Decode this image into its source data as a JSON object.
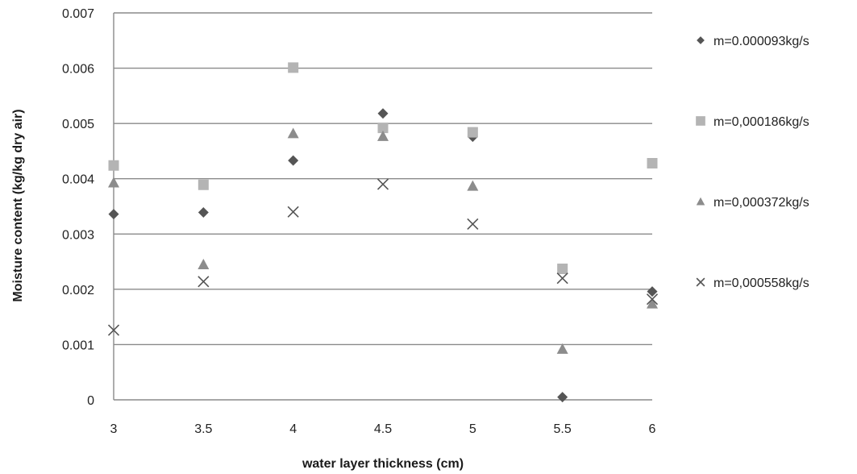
{
  "chart_data": {
    "type": "scatter",
    "xlabel": "water layer thickness (cm)",
    "ylabel": "Moisture content (kg/kg dry air)",
    "xlim": [
      3,
      6
    ],
    "ylim": [
      0,
      0.007
    ],
    "xticks": [
      3,
      3.5,
      4,
      4.5,
      5,
      5.5,
      6
    ],
    "xtick_labels": [
      "3",
      "3.5",
      "4",
      "4.5",
      "5",
      "5.5",
      "6"
    ],
    "yticks": [
      0,
      0.001,
      0.002,
      0.003,
      0.004,
      0.005,
      0.006,
      0.007
    ],
    "ytick_labels": [
      "0",
      "0.001",
      "0.002",
      "0.003",
      "0.004",
      "0.005",
      "0.006",
      "0.007"
    ],
    "grid": "horizontal",
    "legend_position": "right",
    "series": [
      {
        "name": "m=0.000093kg/s",
        "marker": "diamond",
        "color": "#555555",
        "x": [
          3,
          3.5,
          4,
          4.5,
          5,
          5.5,
          6
        ],
        "y": [
          0.00336,
          0.00339,
          0.00433,
          0.00518,
          0.00476,
          5e-05,
          0.00196
        ]
      },
      {
        "name": "m=0,000186kg/s",
        "marker": "square",
        "color": "#b4b4b4",
        "x": [
          3,
          3.5,
          4,
          4.5,
          5,
          5.5,
          6
        ],
        "y": [
          0.00424,
          0.00389,
          0.00601,
          0.00492,
          0.00484,
          0.00237,
          0.00428
        ]
      },
      {
        "name": "m=0,000372kg/s",
        "marker": "triangle",
        "color": "#8c8c8c",
        "x": [
          3,
          3.5,
          4,
          4.5,
          5,
          5.5,
          6
        ],
        "y": [
          0.00393,
          0.00245,
          0.00482,
          0.00477,
          0.00387,
          0.00092,
          0.00174
        ]
      },
      {
        "name": "m=0,000558kg/s",
        "marker": "x",
        "color": "#555555",
        "x": [
          3,
          3.5,
          4,
          4.5,
          5,
          5.5,
          6
        ],
        "y": [
          0.00126,
          0.00214,
          0.0034,
          0.0039,
          0.00318,
          0.0022,
          0.00182
        ]
      }
    ]
  }
}
